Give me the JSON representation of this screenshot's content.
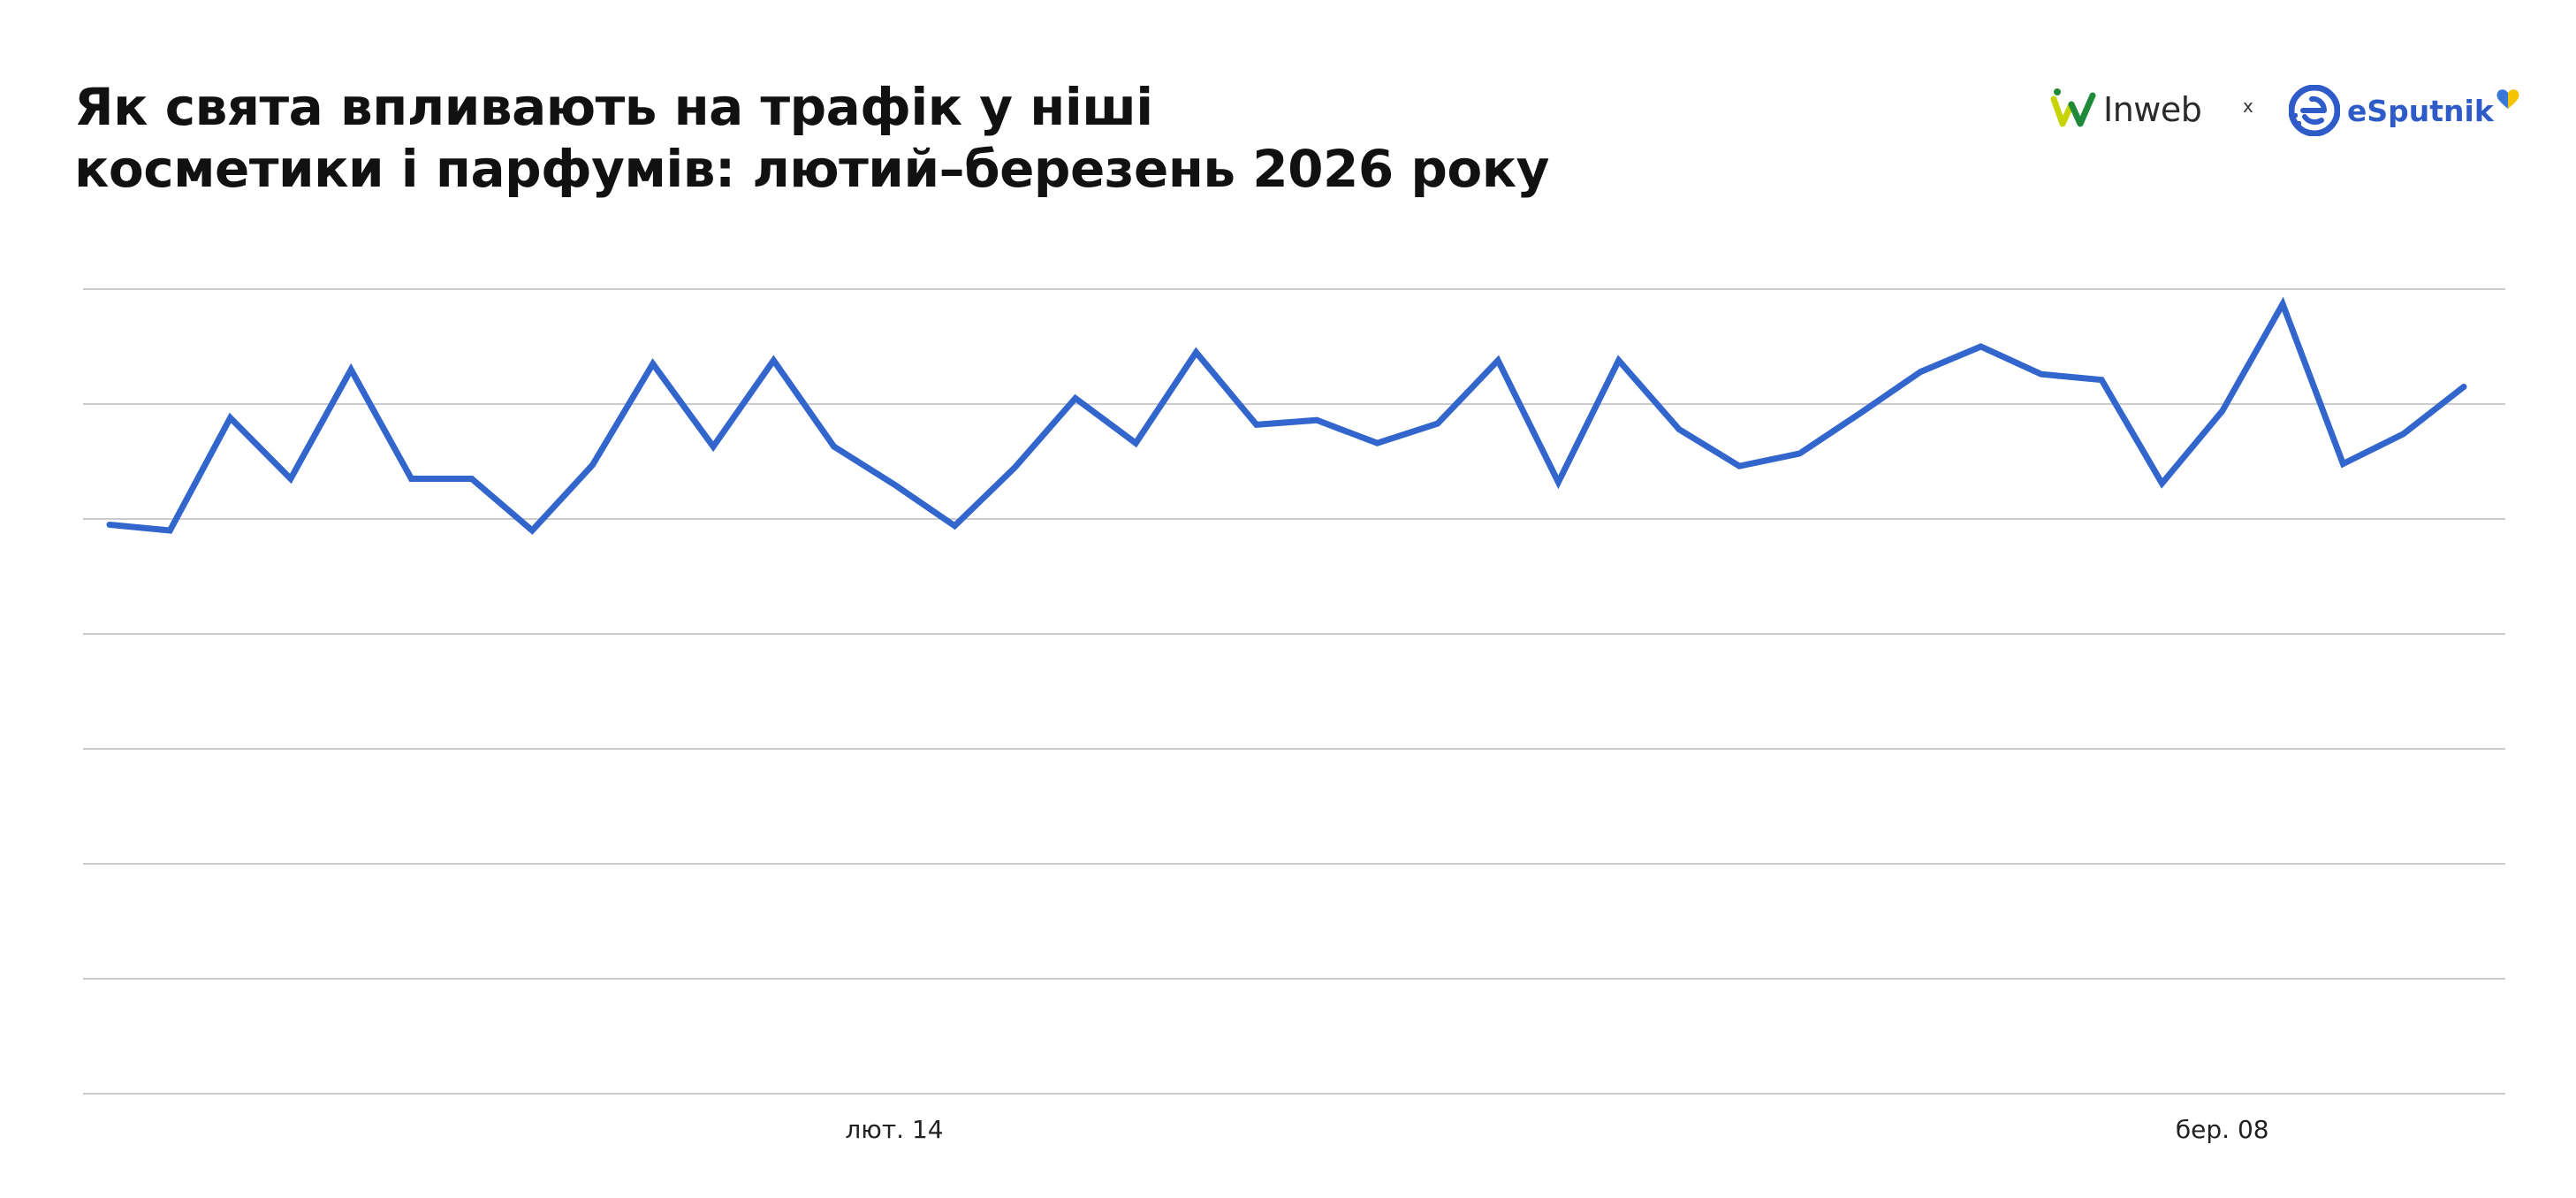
{
  "title": {
    "line1": "Як свята впливають на трафік у ніші",
    "line2": "косметики і парфумів: лютий–березень 2026 року"
  },
  "logos": {
    "inweb_text": "Inweb",
    "separator": "x",
    "esputnik_text": "eSputnik"
  },
  "colors": {
    "line": "#3366cc",
    "grid": "#cccccc",
    "inweb_green": "#1f8a3a",
    "inweb_yellow": "#c8d400",
    "esputnik_blue": "#2f5bc8"
  },
  "chart_data": {
    "type": "line",
    "title": "",
    "xlabel": "",
    "ylabel": "",
    "grid": true,
    "legend": "none",
    "x_tick_labels": [
      {
        "label": "лют. 14",
        "index": 13
      },
      {
        "label": "бер. 08",
        "index": 35
      }
    ],
    "ylim": [
      0,
      7
    ],
    "series": [
      {
        "values": [
          4.95,
          4.9,
          5.88,
          5.35,
          6.3,
          5.35,
          5.35,
          4.9,
          5.47,
          6.35,
          5.63,
          6.38,
          5.63,
          5.3,
          4.94,
          5.45,
          6.05,
          5.66,
          6.45,
          5.82,
          5.86,
          5.66,
          5.83,
          6.38,
          5.32,
          6.38,
          5.78,
          5.46,
          5.57,
          5.92,
          6.28,
          6.5,
          6.26,
          6.21,
          5.31,
          5.94,
          6.87,
          5.48,
          5.74,
          6.15
        ]
      }
    ]
  }
}
